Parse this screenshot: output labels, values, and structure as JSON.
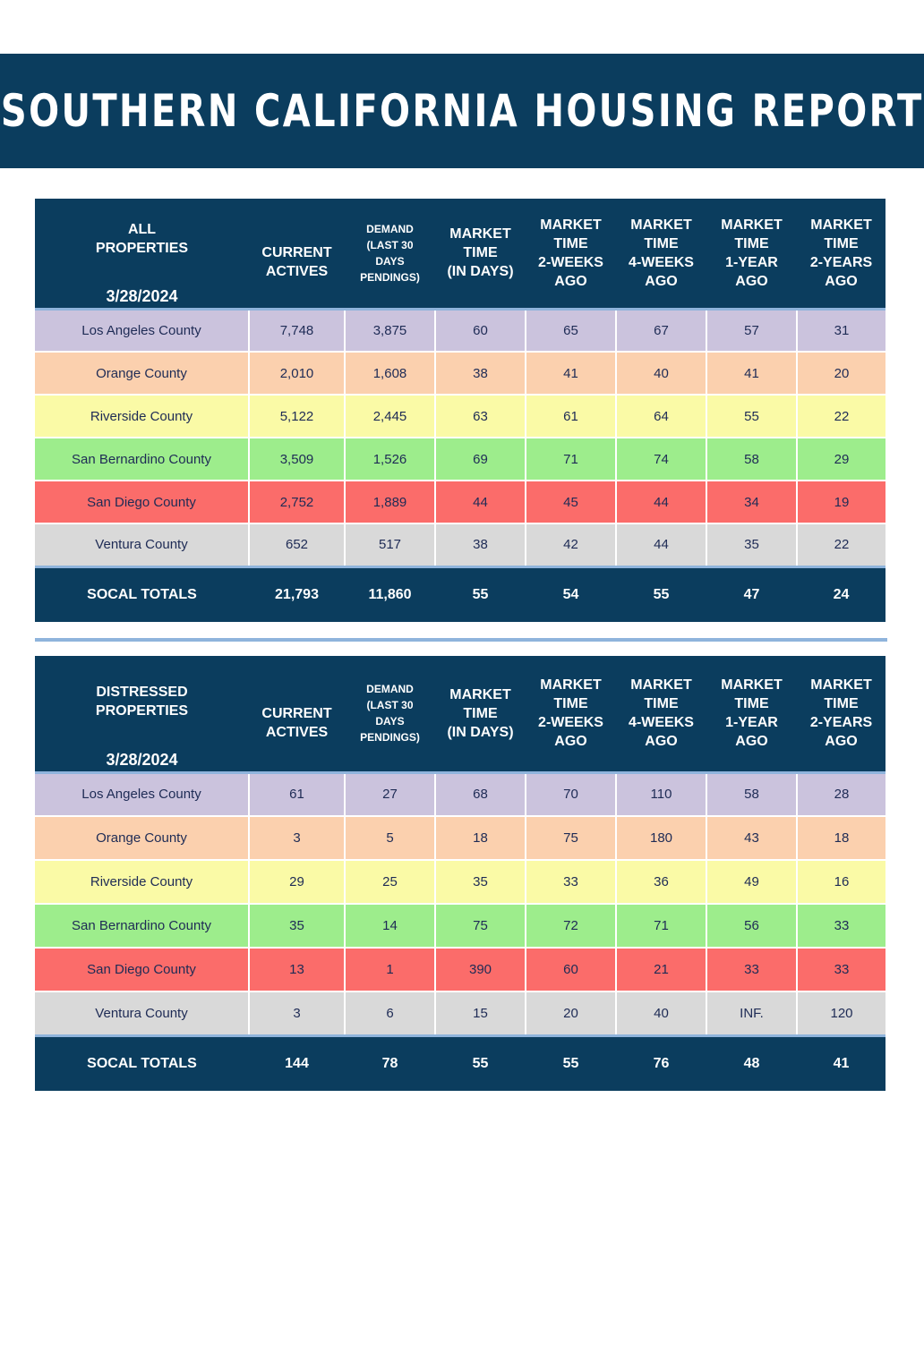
{
  "title": "SOUTHERN CALIFORNIA HOUSING REPORT",
  "headers": {
    "current": [
      "CURRENT",
      "ACTIVES"
    ],
    "demand": [
      "DEMAND",
      "(LAST 30",
      "DAYS",
      "PENDINGS)"
    ],
    "market": [
      "MARKET",
      "TIME",
      "(IN DAYS)"
    ],
    "w2": [
      "MARKET",
      "TIME",
      "2-WEEKS",
      "AGO"
    ],
    "w4": [
      "MARKET",
      "TIME",
      "4-WEEKS",
      "AGO"
    ],
    "y1": [
      "MARKET",
      "TIME",
      "1-YEAR",
      "AGO"
    ],
    "y2": [
      "MARKET",
      "TIME",
      "2-YEARS",
      "AGO"
    ]
  },
  "all_properties": {
    "label": [
      "ALL",
      "PROPERTIES"
    ],
    "date": "3/28/2024",
    "rows": [
      {
        "county": "Los Angeles County",
        "values": [
          "7,748",
          "3,875",
          "60",
          "65",
          "67",
          "57",
          "31"
        ]
      },
      {
        "county": "Orange County",
        "values": [
          "2,010",
          "1,608",
          "38",
          "41",
          "40",
          "41",
          "20"
        ]
      },
      {
        "county": "Riverside County",
        "values": [
          "5,122",
          "2,445",
          "63",
          "61",
          "64",
          "55",
          "22"
        ]
      },
      {
        "county": "San Bernardino County",
        "values": [
          "3,509",
          "1,526",
          "69",
          "71",
          "74",
          "58",
          "29"
        ]
      },
      {
        "county": "San Diego County",
        "values": [
          "2,752",
          "1,889",
          "44",
          "45",
          "44",
          "34",
          "19"
        ]
      },
      {
        "county": "Ventura County",
        "values": [
          "652",
          "517",
          "38",
          "42",
          "44",
          "35",
          "22"
        ]
      }
    ],
    "totals": {
      "label": "SOCAL TOTALS",
      "values": [
        "21,793",
        "11,860",
        "55",
        "54",
        "55",
        "47",
        "24"
      ]
    }
  },
  "distressed_properties": {
    "label": [
      "DISTRESSED",
      "PROPERTIES"
    ],
    "date": "3/28/2024",
    "rows": [
      {
        "county": "Los Angeles County",
        "values": [
          "61",
          "27",
          "68",
          "70",
          "110",
          "58",
          "28"
        ]
      },
      {
        "county": "Orange County",
        "values": [
          "3",
          "5",
          "18",
          "75",
          "180",
          "43",
          "18"
        ]
      },
      {
        "county": "Riverside County",
        "values": [
          "29",
          "25",
          "35",
          "33",
          "36",
          "49",
          "16"
        ]
      },
      {
        "county": "San Bernardino County",
        "values": [
          "35",
          "14",
          "75",
          "72",
          "71",
          "56",
          "33"
        ]
      },
      {
        "county": "San Diego County",
        "values": [
          "13",
          "1",
          "390",
          "60",
          "21",
          "33",
          "33"
        ]
      },
      {
        "county": "Ventura County",
        "values": [
          "3",
          "6",
          "15",
          "20",
          "40",
          "INF.",
          "120"
        ]
      }
    ],
    "totals": {
      "label": "SOCAL TOTALS",
      "values": [
        "144",
        "78",
        "55",
        "55",
        "76",
        "48",
        "41"
      ]
    }
  },
  "row_colors": {
    "los_angeles": "#cbc3dd",
    "orange": "#fbd0ae",
    "riverside": "#fafaa6",
    "san_bernardino": "#9ded8c",
    "san_diego": "#fb6c6a",
    "ventura": "#d9d9d9",
    "header_navy": "#0b3d5e",
    "accent_blue": "#8fb4dc"
  }
}
